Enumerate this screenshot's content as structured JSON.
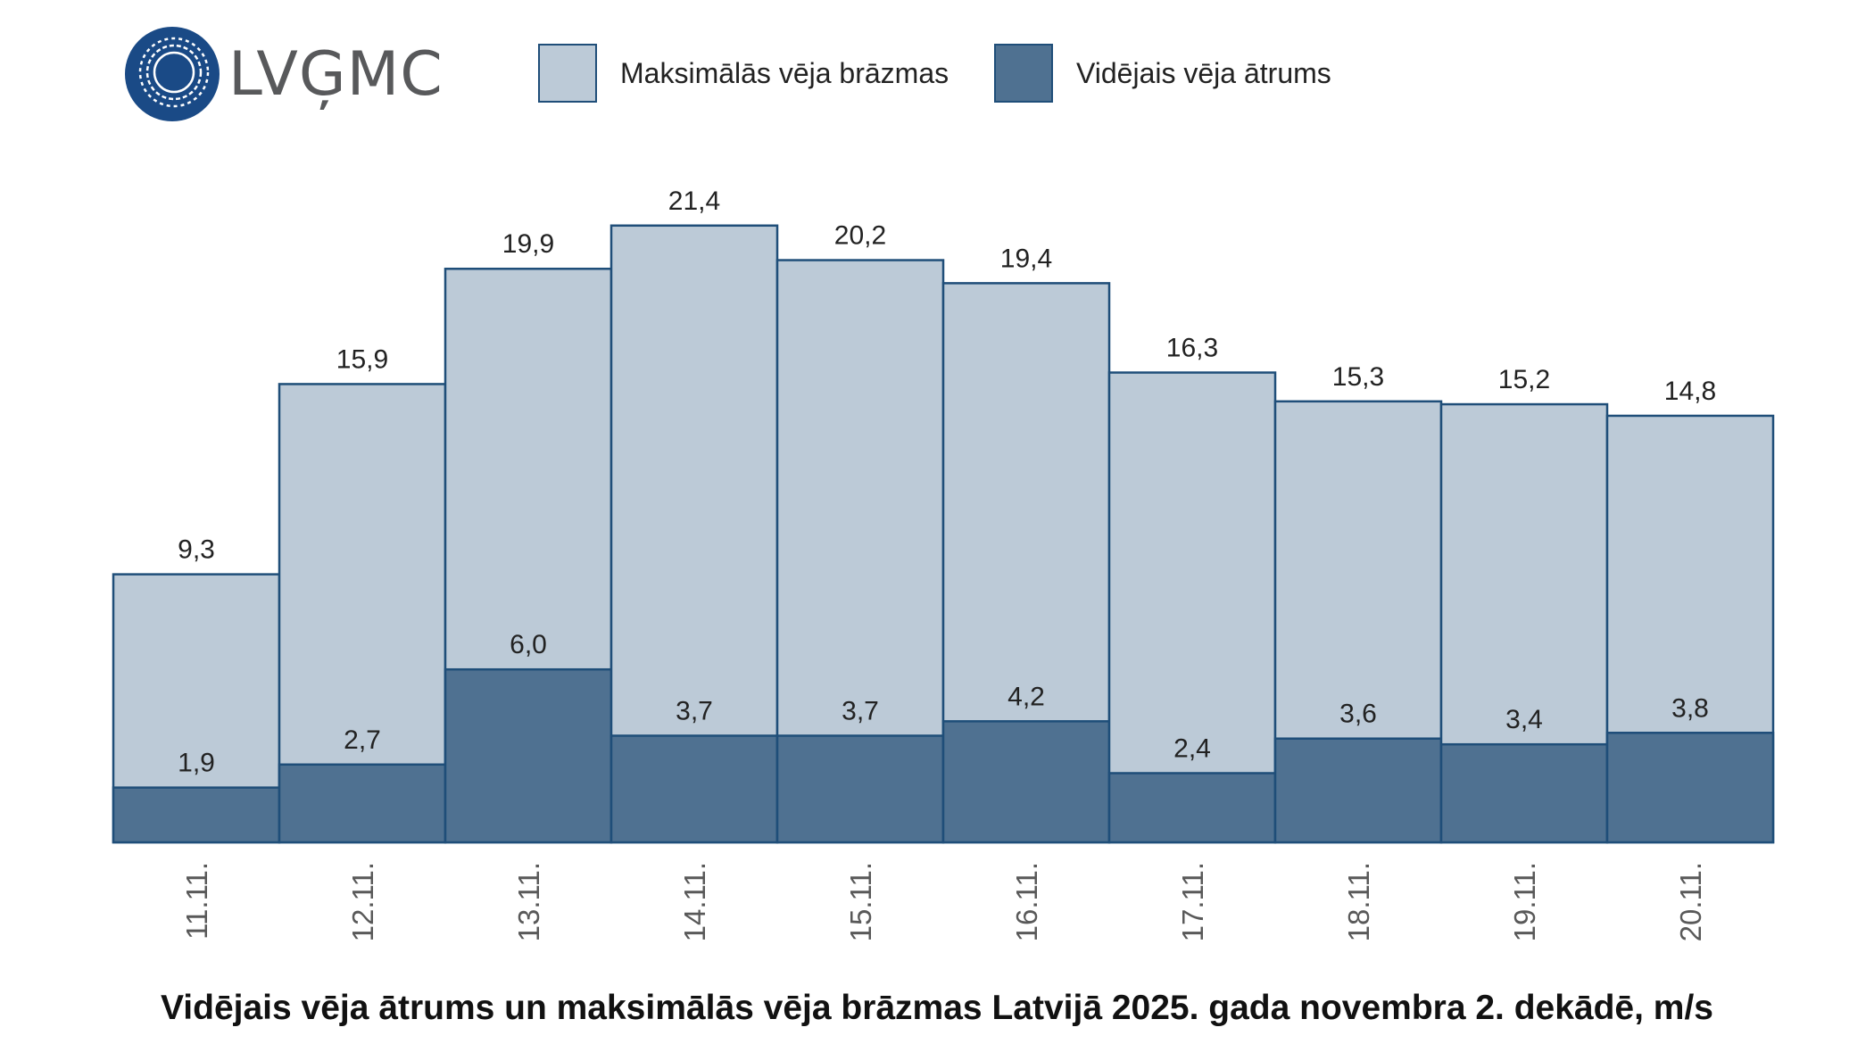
{
  "brand": {
    "name": "LVĢMC",
    "color": "#1a4a86"
  },
  "chart_data": {
    "type": "bar",
    "layout": "overlapping",
    "title": "Vidējais vēja ātrums un maksimālās vēja brāzmas Latvijā 2025. gada novembra 2. dekādē, m/s",
    "categories": [
      "11.11.",
      "12.11.",
      "13.11.",
      "14.11.",
      "15.11.",
      "16.11.",
      "17.11.",
      "18.11.",
      "19.11.",
      "20.11."
    ],
    "series": [
      {
        "name": "Maksimālās vēja brāzmas",
        "color": "#bccad7",
        "values": [
          9.3,
          15.9,
          19.9,
          21.4,
          20.2,
          19.4,
          16.3,
          15.3,
          15.2,
          14.8
        ],
        "labels": [
          "9,3",
          "15,9",
          "19,9",
          "21,4",
          "20,2",
          "19,4",
          "16,3",
          "15,3",
          "15,2",
          "14,8"
        ]
      },
      {
        "name": "Vidējais vēja ātrums",
        "color": "#4f7191",
        "values": [
          1.9,
          2.7,
          6.0,
          3.7,
          3.7,
          4.2,
          2.4,
          3.6,
          3.4,
          3.8
        ],
        "labels": [
          "1,9",
          "2,7",
          "6,0",
          "3,7",
          "3,7",
          "4,2",
          "2,4",
          "3,6",
          "3,4",
          "3,8"
        ]
      }
    ],
    "border_color": "#1f4e79",
    "ylim": [
      0,
      23
    ],
    "grid": false,
    "legend_position": "top"
  }
}
